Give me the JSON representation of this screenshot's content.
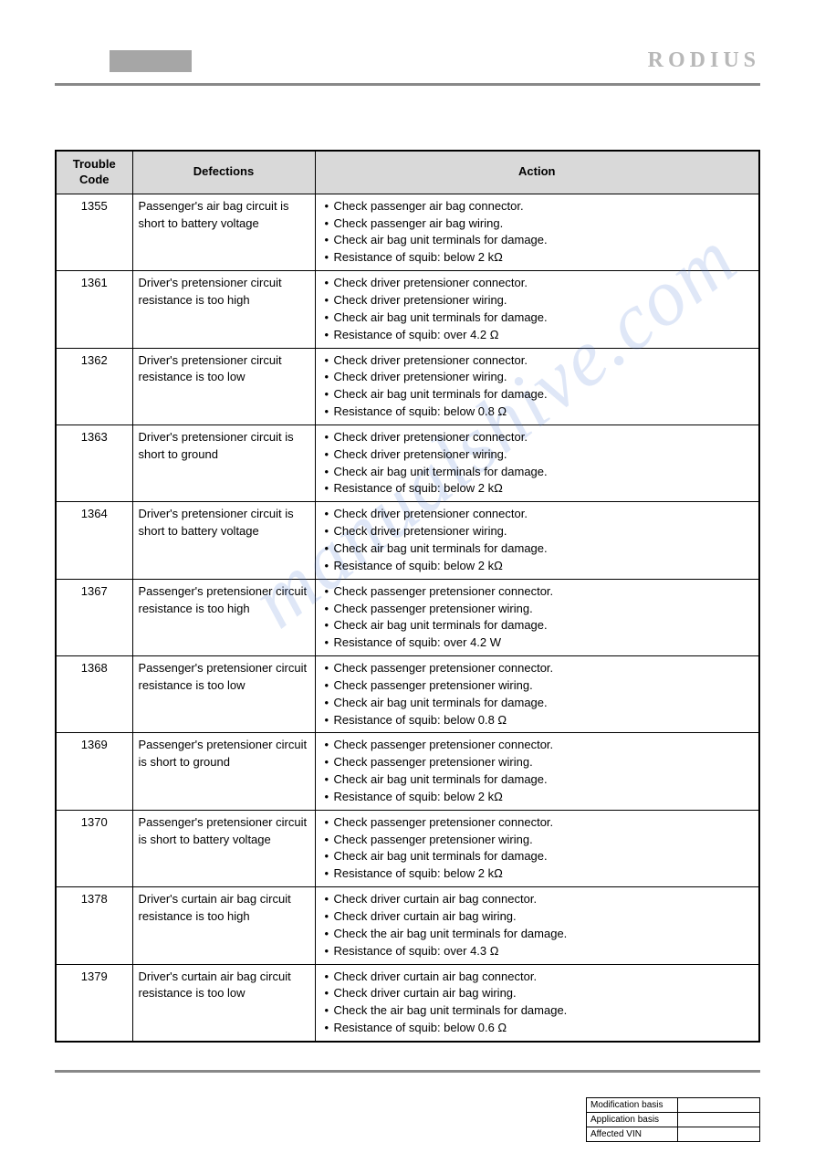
{
  "brand": "RODIUS",
  "watermark": "manualshive.com",
  "table": {
    "headers": {
      "code": "Trouble\nCode",
      "defections": "Defections",
      "action": "Action"
    },
    "rows": [
      {
        "code": "1355",
        "defection": "Passenger's air bag circuit is short to battery voltage",
        "actions": [
          "Check passenger air bag connector.",
          "Check passenger air bag wiring.",
          "Check air bag unit terminals for damage.",
          "Resistance of squib: below 2 kΩ"
        ]
      },
      {
        "code": "1361",
        "defection": "Driver's pretensioner circuit resistance is too high",
        "actions": [
          "Check driver pretensioner connector.",
          "Check driver pretensioner wiring.",
          "Check air bag unit terminals for damage.",
          "Resistance of squib: over 4.2 Ω"
        ]
      },
      {
        "code": "1362",
        "defection": "Driver's pretensioner circuit resistance is too low",
        "actions": [
          "Check driver pretensioner connector.",
          "Check driver pretensioner wiring.",
          "Check air bag unit terminals for damage.",
          "Resistance of squib: below 0.8 Ω"
        ]
      },
      {
        "code": "1363",
        "defection": "Driver's pretensioner circuit is short to ground",
        "actions": [
          "Check driver pretensioner connector.",
          "Check driver pretensioner wiring.",
          "Check air bag unit terminals for damage.",
          "Resistance of squib: below 2 kΩ"
        ]
      },
      {
        "code": "1364",
        "defection": "Driver's pretensioner circuit is short to battery voltage",
        "actions": [
          "Check driver pretensioner connector.",
          "Check driver pretensioner wiring.",
          "Check air bag unit terminals for damage.",
          "Resistance of squib: below 2 kΩ"
        ]
      },
      {
        "code": "1367",
        "defection": "Passenger's pretensioner circuit resistance is too high",
        "actions": [
          "Check passenger pretensioner connector.",
          "Check passenger pretensioner wiring.",
          "Check air bag unit terminals for damage.",
          "Resistance of squib: over 4.2 W"
        ]
      },
      {
        "code": "1368",
        "defection": "Passenger's pretensioner circuit resistance is too low",
        "actions": [
          "Check passenger pretensioner connector.",
          "Check passenger pretensioner wiring.",
          "Check air bag unit terminals for damage.",
          "Resistance of squib: below 0.8 Ω"
        ]
      },
      {
        "code": "1369",
        "defection": "Passenger's pretensioner circuit is short to ground",
        "actions": [
          "Check passenger pretensioner connector.",
          "Check passenger pretensioner wiring.",
          "Check air bag unit terminals for damage.",
          "Resistance of squib: below 2 kΩ"
        ]
      },
      {
        "code": "1370",
        "defection": "Passenger's pretensioner circuit is short to battery voltage",
        "actions": [
          "Check passenger pretensioner connector.",
          "Check passenger pretensioner wiring.",
          "Check air bag unit terminals for damage.",
          "Resistance of squib: below 2 kΩ"
        ]
      },
      {
        "code": "1378",
        "defection": "Driver's curtain air bag circuit resistance is too high",
        "actions": [
          "Check driver curtain air bag connector.",
          "Check driver curtain air bag wiring.",
          "Check the air bag unit terminals for damage.",
          "Resistance of squib: over 4.3 Ω"
        ]
      },
      {
        "code": "1379",
        "defection": "Driver's curtain air bag circuit resistance is too low",
        "actions": [
          "Check driver curtain air bag connector.",
          "Check driver curtain air bag wiring.",
          "Check the air bag unit terminals for damage.",
          "Resistance of squib: below 0.6 Ω"
        ]
      }
    ]
  },
  "footer": {
    "rows": [
      {
        "label": "Modification basis",
        "value": ""
      },
      {
        "label": "Application basis",
        "value": ""
      },
      {
        "label": "Affected VIN",
        "value": ""
      }
    ]
  }
}
